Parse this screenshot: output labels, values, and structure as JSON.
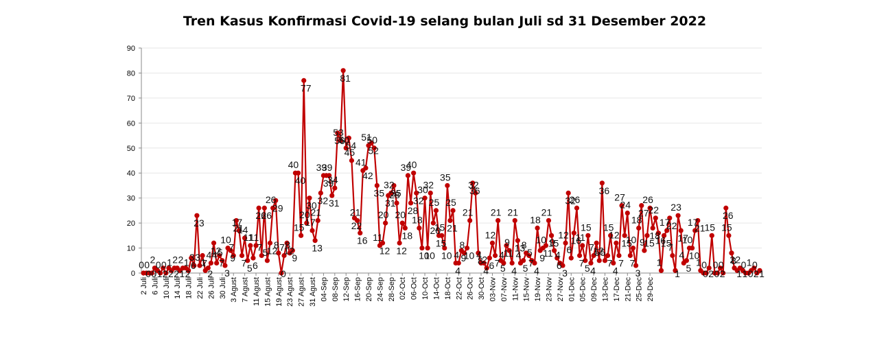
{
  "chart_data": {
    "type": "line",
    "title": "Tren Kasus Konfirmasi Covid-19 selang bulan Juli  sd 31 Desember 2022",
    "xlabel": "",
    "ylabel": "",
    "ylim": [
      0,
      90
    ],
    "yticks": [
      0,
      10,
      20,
      30,
      40,
      50,
      60,
      70,
      80,
      90
    ],
    "grid": true,
    "legend": "none",
    "colors": {
      "series": "#c00000"
    },
    "x_tick_labels": [
      "2 Juli",
      "6 Juli",
      "10 Juli",
      "14 Juli",
      "18 Juli",
      "22 Juli",
      "26 Juli",
      "30 Juli",
      "3 Agust",
      "7 Agust",
      "11 Agust",
      "15 Agust",
      "19 Agust",
      "23 Agust",
      "27 Agust",
      "31 Agust",
      "04-Sep",
      "08-Sep",
      "12-Sep",
      "16-Sep",
      "20-Sep",
      "24-Sep",
      "28-Sep",
      "02-Oct",
      "06-Oct",
      "10-Oct",
      "14-Oct",
      "18-Oct",
      "22-Oct",
      "26-Oct",
      "30-Oct",
      "03-Nov",
      "07-Nov",
      "11-Nov",
      "15-Nov",
      "19-Nov",
      "23-Nov",
      "27-Nov",
      "01-Dec",
      "05-Dec",
      "09-Dec",
      "13-Dec",
      "17-Dec",
      "21-Dec",
      "25-Dec",
      "29-Dec"
    ],
    "series": [
      {
        "values": [
          0,
          0,
          0,
          0,
          2,
          1,
          0,
          2,
          0,
          2,
          1,
          2,
          2,
          1,
          2,
          2,
          1,
          6,
          3,
          23,
          3,
          7,
          1,
          2,
          4,
          12,
          4,
          7,
          5,
          3,
          10,
          9,
          7,
          21,
          17,
          7,
          14,
          5,
          11,
          6,
          11,
          26,
          7,
          26,
          5,
          12,
          26,
          29,
          8,
          0,
          7,
          12,
          8,
          9,
          40,
          40,
          15,
          77,
          20,
          30,
          17,
          13,
          21,
          32,
          39,
          39,
          39,
          31,
          34,
          56,
          53,
          81,
          50,
          54,
          45,
          22,
          21,
          16,
          41,
          42,
          51,
          52,
          50,
          35,
          11,
          12,
          20,
          31,
          32,
          35,
          28,
          12,
          20,
          18,
          39,
          28,
          40,
          32,
          18,
          10,
          30,
          10,
          32,
          20,
          25,
          15,
          15,
          10,
          35,
          21,
          25,
          4,
          4,
          9,
          8,
          10,
          21,
          36,
          32,
          8,
          4,
          4,
          2,
          6,
          12,
          7,
          21,
          5,
          4,
          11,
          9,
          4,
          21,
          13,
          4,
          5,
          8,
          7,
          5,
          4,
          18,
          9,
          10,
          11,
          21,
          15,
          9,
          6,
          4,
          3,
          12,
          32,
          6,
          16,
          26,
          7,
          11,
          5,
          15,
          4,
          7,
          12,
          5,
          36,
          5,
          7,
          15,
          4,
          12,
          7,
          27,
          15,
          24,
          7,
          10,
          3,
          18,
          27,
          9,
          15,
          26,
          18,
          22,
          16,
          1,
          15,
          17,
          22,
          7,
          1,
          23,
          17,
          4,
          5,
          10,
          10,
          17,
          21,
          1,
          0,
          0,
          2,
          15,
          0,
          0,
          2,
          0,
          26,
          15,
          8,
          2,
          1,
          2,
          1,
          0,
          0,
          1,
          2,
          0,
          1
        ]
      }
    ],
    "data_labels": [
      "0",
      "0",
      "0",
      "0",
      "2",
      "1",
      "0",
      "2",
      "0",
      "2",
      "1",
      "2",
      "2",
      "1",
      "2",
      "2",
      "1",
      "6",
      "3",
      "23",
      "3",
      "7",
      "1",
      "2",
      "4",
      "12",
      "4",
      "7",
      "5",
      "3",
      "10",
      "9",
      "7",
      "21",
      "17",
      "7",
      "14",
      "5",
      "11",
      "6",
      "11",
      "26",
      "7",
      "26",
      "5",
      "12",
      "26",
      "29",
      "8",
      "0",
      "7",
      "12",
      "8",
      "9",
      "40",
      "40",
      "15",
      "77",
      "20",
      "30",
      "17",
      "13",
      "21",
      "32",
      "39",
      "39",
      "39",
      "31",
      "34",
      "56",
      "53",
      "81",
      "50",
      "54",
      "45",
      "22",
      "21",
      "16",
      "41",
      "42",
      "51",
      "52",
      "50",
      "35",
      "11",
      "12",
      "20",
      "31",
      "32",
      "35",
      "28",
      "12",
      "20",
      "18",
      "39",
      "28",
      "40",
      "32",
      "18",
      "10",
      "30",
      "10",
      "32",
      "20",
      "25",
      "15",
      "15",
      "10",
      "35",
      "21",
      "25",
      "4",
      "4",
      "9",
      "8",
      "10",
      "21",
      "36",
      "32",
      "8",
      "4",
      "4",
      "2",
      "6",
      "12",
      "7",
      "21",
      "5",
      "4",
      "11",
      "9",
      "4",
      "21",
      "13",
      "4",
      "5",
      "8",
      "7",
      "5",
      "4",
      "18",
      "9",
      "10",
      "11",
      "21",
      "15",
      "9",
      "6",
      "4",
      "3",
      "12",
      "32",
      "6",
      "16",
      "26",
      "7",
      "11",
      "5",
      "15",
      "4",
      "7",
      "12",
      "5",
      "36",
      "5",
      "7",
      "15",
      "4",
      "12",
      "7",
      "27",
      "15",
      "24",
      "7",
      "10",
      "3",
      "18",
      "27",
      "9",
      "15",
      "26",
      "18",
      "22",
      "16",
      "1",
      "15",
      "17",
      "22",
      "7",
      "1",
      "23",
      "17",
      "4",
      "5",
      "10",
      "10",
      "17",
      "21",
      "1",
      "0",
      "0",
      "2",
      "15",
      "0",
      "0",
      "2",
      "0",
      "26",
      "15",
      "8",
      "2",
      "1",
      "2",
      "1",
      "0",
      "0",
      "1",
      "2",
      "0",
      "1"
    ]
  }
}
